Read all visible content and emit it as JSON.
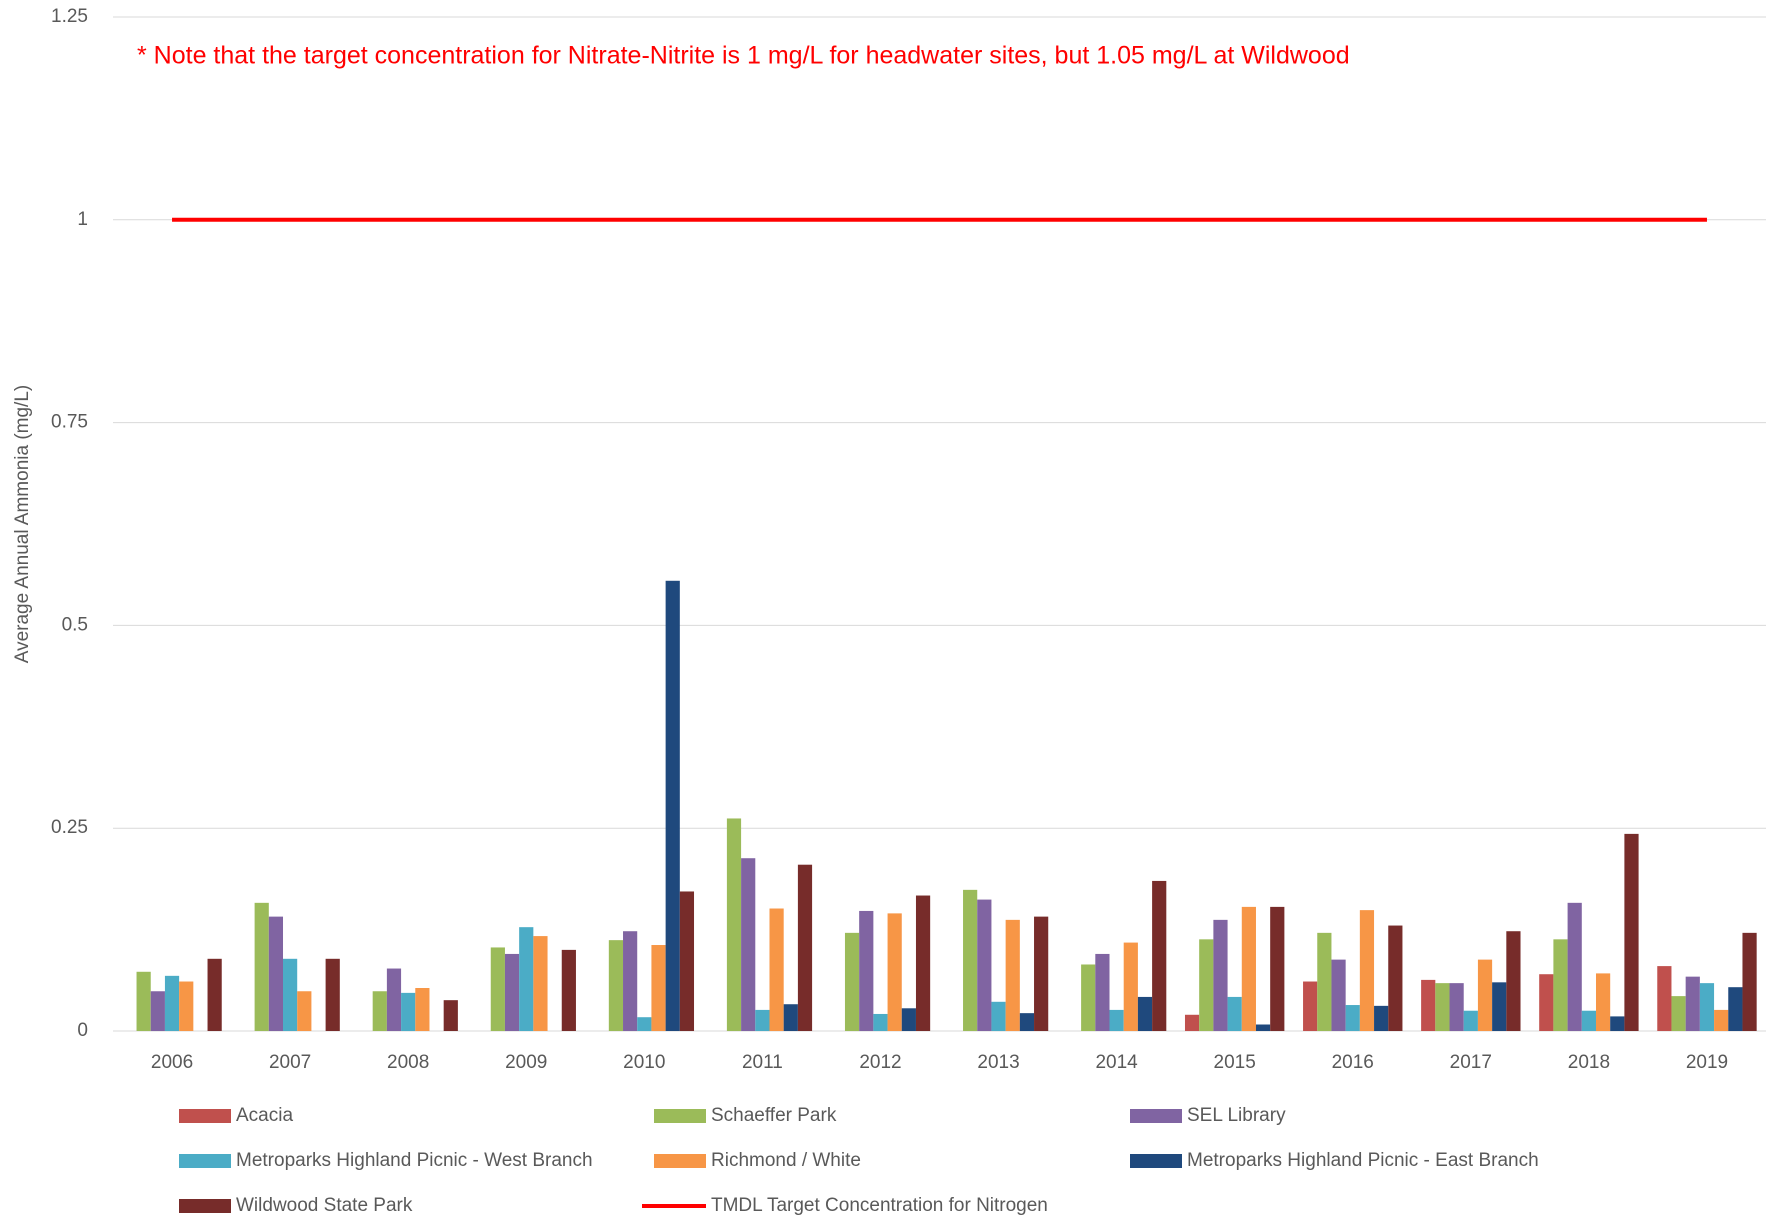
{
  "chart_data": {
    "type": "bar",
    "annotation": "* Note that the target concentration for Nitrate-Nitrite is 1 mg/L for headwater sites, but 1.05 mg/L at Wildwood",
    "y_label": "Average Annual Ammonia (mg/L)",
    "categories": [
      "2006",
      "2007",
      "2008",
      "2009",
      "2010",
      "2011",
      "2012",
      "2013",
      "2014",
      "2015",
      "2016",
      "2017",
      "2018",
      "2019"
    ],
    "ylim": [
      0,
      1.25
    ],
    "yticks": [
      0,
      0.25,
      0.5,
      0.75,
      1,
      1.25
    ],
    "grid": true,
    "series": [
      {
        "name": "Acacia",
        "color": "#c0504d",
        "values": [
          null,
          null,
          null,
          null,
          null,
          null,
          null,
          null,
          null,
          0.02,
          0.061,
          0.063,
          0.07,
          0.08
        ]
      },
      {
        "name": "Schaeffer Park",
        "color": "#9bbb59",
        "values": [
          0.073,
          0.158,
          0.049,
          0.103,
          0.112,
          0.262,
          0.121,
          0.174,
          0.082,
          0.113,
          0.121,
          0.059,
          0.113,
          0.043
        ]
      },
      {
        "name": "SEL Library",
        "color": "#8064a2",
        "values": [
          0.049,
          0.141,
          0.077,
          0.095,
          0.123,
          0.213,
          0.148,
          0.162,
          0.095,
          0.137,
          0.088,
          0.059,
          0.158,
          0.067
        ]
      },
      {
        "name": "Metroparks Highland Picnic - West Branch",
        "color": "#4bacc6",
        "values": [
          0.068,
          0.089,
          0.047,
          0.128,
          0.017,
          0.026,
          0.021,
          0.036,
          0.026,
          0.042,
          0.032,
          0.025,
          0.025,
          0.059
        ]
      },
      {
        "name": "Richmond / White",
        "color": "#f79646",
        "values": [
          0.061,
          0.049,
          0.053,
          0.117,
          0.106,
          0.151,
          0.145,
          0.137,
          0.109,
          0.153,
          0.149,
          0.088,
          0.071,
          0.026
        ]
      },
      {
        "name": "Metroparks Highland Picnic - East Branch",
        "color": "#1f497d",
        "values": [
          null,
          null,
          null,
          null,
          0.555,
          0.033,
          0.028,
          0.022,
          0.042,
          0.008,
          0.031,
          0.06,
          0.018,
          0.054
        ]
      },
      {
        "name": "Wildwood State Park",
        "color": "#772c2a",
        "values": [
          0.089,
          0.089,
          0.038,
          0.1,
          0.172,
          0.205,
          0.167,
          0.141,
          0.185,
          0.153,
          0.13,
          0.123,
          0.243,
          0.121
        ]
      },
      {
        "name": "TMDL Target Concentration for Nitrogen",
        "color": "#ff0000",
        "type": "line",
        "values": [
          1,
          1,
          1,
          1,
          1,
          1,
          1,
          1,
          1,
          1,
          1,
          1,
          1,
          1
        ]
      }
    ]
  }
}
